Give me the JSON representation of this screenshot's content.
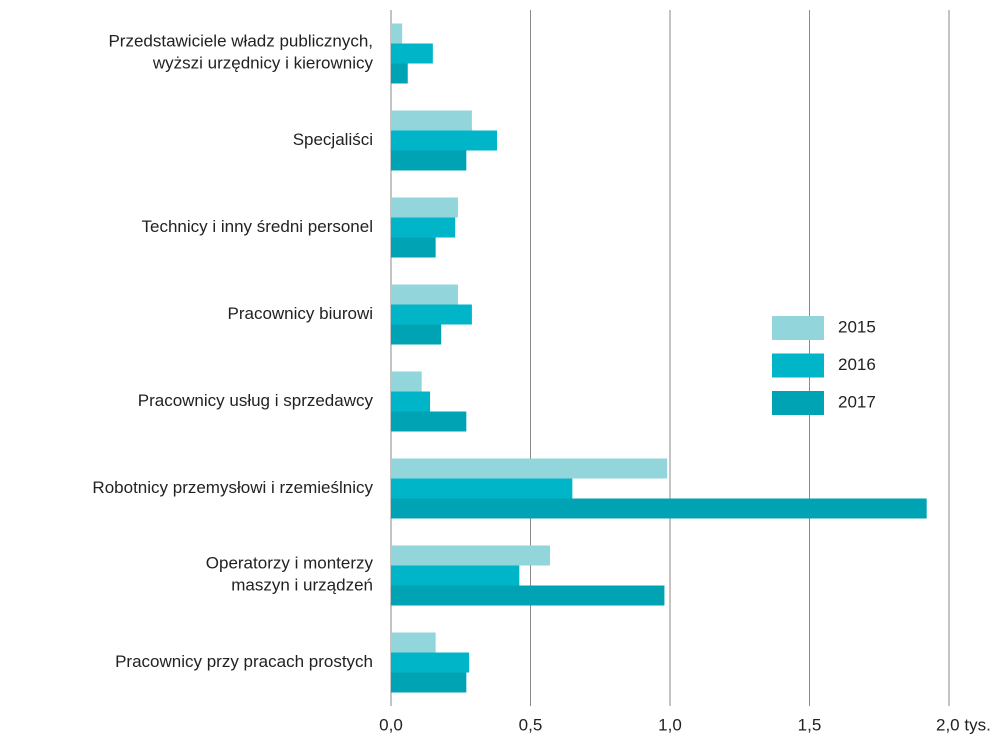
{
  "chart_data": {
    "type": "barh",
    "categories": [
      "Przedstawiciele władz publicznych,\nwyższi urzędnicy i kierownicy",
      "Specjaliści",
      "Technicy i inny średni personel",
      "Pracownicy biurowi",
      "Pracownicy usług  i sprzedawcy",
      "Robotnicy przemysłowi i rzemieślnicy",
      "Operatorzy i monterzy\nmaszyn i urządzeń",
      "Pracownicy przy pracach prostych"
    ],
    "series": [
      {
        "name": "2015",
        "color": "#92d6dc",
        "values": [
          0.04,
          0.29,
          0.24,
          0.24,
          0.11,
          0.99,
          0.57,
          0.16
        ]
      },
      {
        "name": "2016",
        "color": "#00b5c8",
        "values": [
          0.15,
          0.38,
          0.23,
          0.29,
          0.14,
          0.65,
          0.46,
          0.28
        ]
      },
      {
        "name": "2017",
        "color": "#00a3b4",
        "values": [
          0.06,
          0.27,
          0.16,
          0.18,
          0.27,
          1.92,
          0.98,
          0.27
        ]
      }
    ],
    "xlim": [
      0,
      2.0
    ],
    "xticks": [
      {
        "value": 0,
        "label": "0,0"
      },
      {
        "value": 0.5,
        "label": "0,5"
      },
      {
        "value": 1.0,
        "label": "1,0"
      },
      {
        "value": 1.5,
        "label": "1,5"
      },
      {
        "value": 2.0,
        "label": "2,0 tys."
      }
    ],
    "grid": true,
    "legend": "right"
  }
}
